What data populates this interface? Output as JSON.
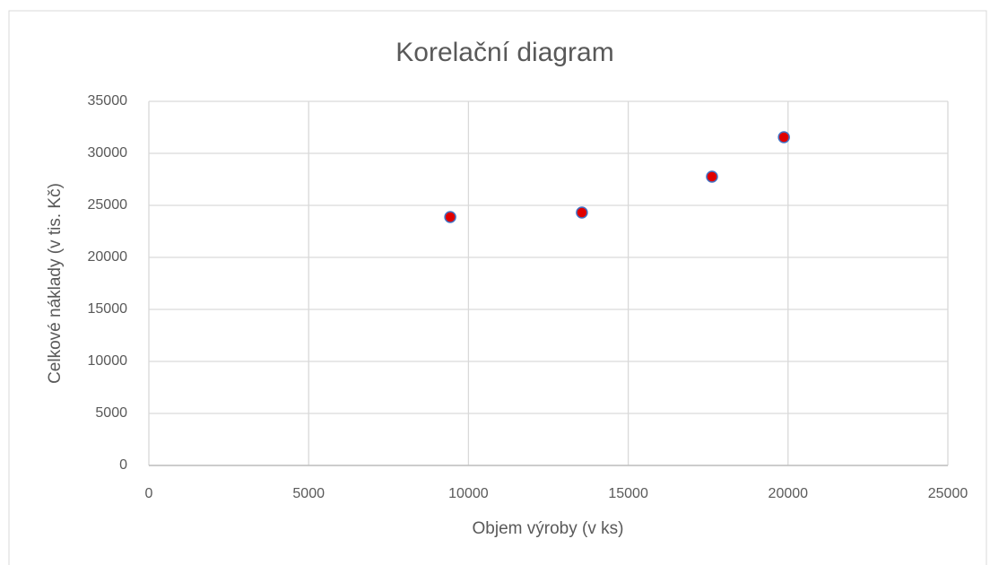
{
  "chart_data": {
    "type": "scatter",
    "title": "Korelační diagram",
    "xlabel": "Objem výroby (v ks)",
    "ylabel": "Celkové náklady (v tis. Kč)",
    "x": [
      9430,
      13550,
      17620,
      19870
    ],
    "values": [
      23880,
      24310,
      27760,
      31550
    ],
    "color": "#e00000",
    "edgecolor": "#4472c4",
    "xlim": [
      0,
      25000
    ],
    "xticks": [
      0,
      5000,
      10000,
      15000,
      20000,
      25000
    ],
    "ylim": [
      0,
      35000
    ],
    "yticks": [
      0,
      5000,
      10000,
      15000,
      20000,
      25000,
      30000,
      35000
    ],
    "grid": true
  }
}
